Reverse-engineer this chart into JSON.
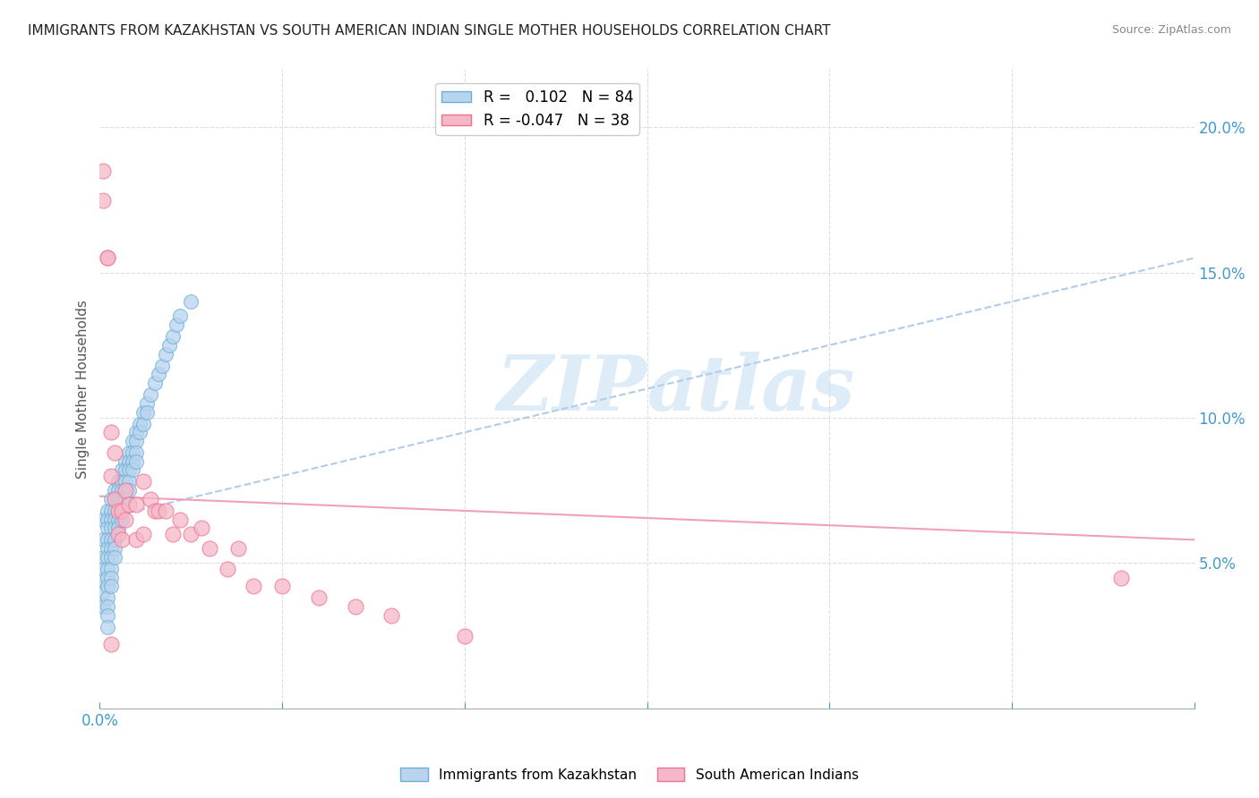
{
  "title": "IMMIGRANTS FROM KAZAKHSTAN VS SOUTH AMERICAN INDIAN SINGLE MOTHER HOUSEHOLDS CORRELATION CHART",
  "source": "Source: ZipAtlas.com",
  "ylabel": "Single Mother Households",
  "xlim": [
    0.0,
    0.3
  ],
  "ylim": [
    0.0,
    0.22
  ],
  "xtick_positions": [
    0.0,
    0.05,
    0.1,
    0.15,
    0.2,
    0.25,
    0.3
  ],
  "xticklabels_shown": {
    "0.0": "0.0%"
  },
  "yticks_right": [
    0.05,
    0.1,
    0.15,
    0.2
  ],
  "yticklabels_right": [
    "5.0%",
    "10.0%",
    "15.0%",
    "20.0%"
  ],
  "series1_color": "#b8d4ee",
  "series2_color": "#f5b8c8",
  "series1_edge": "#6baed6",
  "series2_edge": "#f07090",
  "trendline1_color": "#b0cce8",
  "trendline2_color": "#f0a0b8",
  "watermark": "ZIPatlas",
  "watermark_color": "#d0e8f8",
  "background_color": "#ffffff",
  "grid_color": "#dddddd",
  "title_color": "#222222",
  "axis_label_color": "#555555",
  "tick_color_x": "#4499cc",
  "tick_color_right": "#4499cc",
  "series1_R": 0.102,
  "series1_N": 84,
  "series2_R": -0.047,
  "series2_N": 38,
  "blue_points_x": [
    0.001,
    0.001,
    0.001,
    0.001,
    0.001,
    0.001,
    0.001,
    0.002,
    0.002,
    0.002,
    0.002,
    0.002,
    0.002,
    0.002,
    0.002,
    0.002,
    0.002,
    0.002,
    0.002,
    0.002,
    0.003,
    0.003,
    0.003,
    0.003,
    0.003,
    0.003,
    0.003,
    0.003,
    0.003,
    0.003,
    0.004,
    0.004,
    0.004,
    0.004,
    0.004,
    0.004,
    0.004,
    0.004,
    0.005,
    0.005,
    0.005,
    0.005,
    0.005,
    0.005,
    0.006,
    0.006,
    0.006,
    0.006,
    0.006,
    0.006,
    0.007,
    0.007,
    0.007,
    0.007,
    0.007,
    0.008,
    0.008,
    0.008,
    0.008,
    0.008,
    0.009,
    0.009,
    0.009,
    0.009,
    0.01,
    0.01,
    0.01,
    0.01,
    0.011,
    0.011,
    0.012,
    0.012,
    0.013,
    0.013,
    0.014,
    0.015,
    0.016,
    0.017,
    0.018,
    0.019,
    0.02,
    0.021,
    0.022,
    0.025
  ],
  "blue_points_y": [
    0.065,
    0.058,
    0.052,
    0.048,
    0.044,
    0.04,
    0.035,
    0.068,
    0.065,
    0.062,
    0.058,
    0.055,
    0.052,
    0.048,
    0.045,
    0.042,
    0.038,
    0.035,
    0.032,
    0.028,
    0.072,
    0.068,
    0.065,
    0.062,
    0.058,
    0.055,
    0.052,
    0.048,
    0.045,
    0.042,
    0.075,
    0.072,
    0.068,
    0.065,
    0.062,
    0.058,
    0.055,
    0.052,
    0.078,
    0.075,
    0.072,
    0.068,
    0.065,
    0.062,
    0.082,
    0.078,
    0.075,
    0.072,
    0.068,
    0.065,
    0.085,
    0.082,
    0.078,
    0.075,
    0.072,
    0.088,
    0.085,
    0.082,
    0.078,
    0.075,
    0.092,
    0.088,
    0.085,
    0.082,
    0.095,
    0.092,
    0.088,
    0.085,
    0.098,
    0.095,
    0.102,
    0.098,
    0.105,
    0.102,
    0.108,
    0.112,
    0.115,
    0.118,
    0.122,
    0.125,
    0.128,
    0.132,
    0.135,
    0.14
  ],
  "pink_points_x": [
    0.001,
    0.001,
    0.002,
    0.002,
    0.003,
    0.003,
    0.004,
    0.004,
    0.005,
    0.005,
    0.006,
    0.006,
    0.007,
    0.007,
    0.008,
    0.01,
    0.01,
    0.012,
    0.012,
    0.014,
    0.015,
    0.016,
    0.018,
    0.02,
    0.022,
    0.025,
    0.028,
    0.03,
    0.035,
    0.038,
    0.042,
    0.05,
    0.06,
    0.07,
    0.08,
    0.1,
    0.28,
    0.003
  ],
  "pink_points_y": [
    0.185,
    0.175,
    0.155,
    0.155,
    0.095,
    0.08,
    0.088,
    0.072,
    0.068,
    0.06,
    0.068,
    0.058,
    0.075,
    0.065,
    0.07,
    0.07,
    0.058,
    0.078,
    0.06,
    0.072,
    0.068,
    0.068,
    0.068,
    0.06,
    0.065,
    0.06,
    0.062,
    0.055,
    0.048,
    0.055,
    0.042,
    0.042,
    0.038,
    0.035,
    0.032,
    0.025,
    0.045,
    0.022
  ],
  "trendline1_x": [
    0.0,
    0.3
  ],
  "trendline1_y": [
    0.065,
    0.155
  ],
  "trendline2_x": [
    0.0,
    0.3
  ],
  "trendline2_y": [
    0.073,
    0.058
  ]
}
